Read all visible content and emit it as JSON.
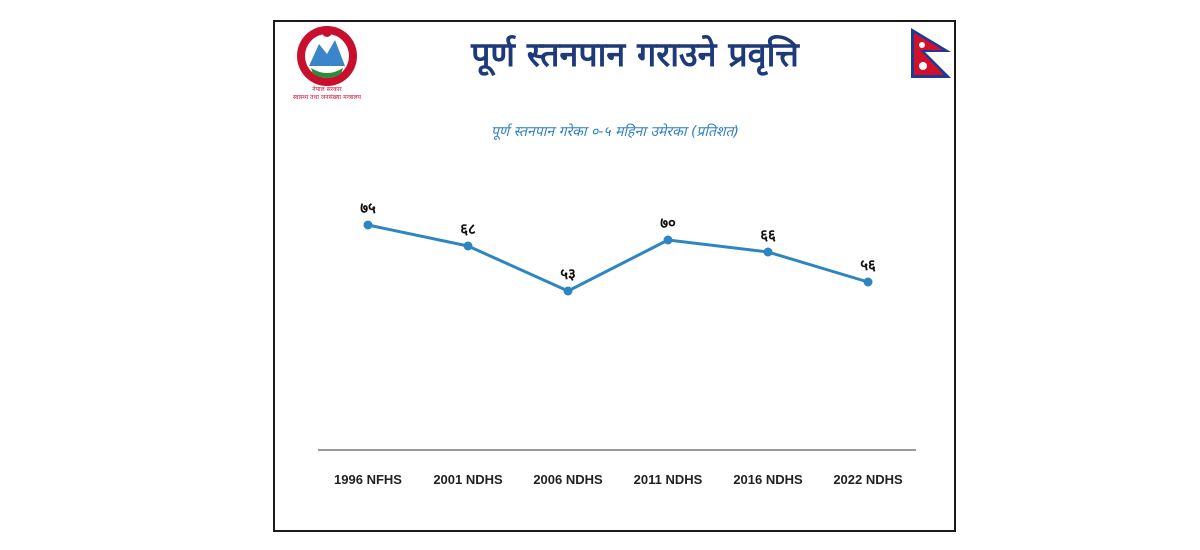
{
  "header": {
    "title": "पूर्ण स्तनपान गराउने प्रवृत्ति",
    "emblem_icon": "nepal-government-emblem",
    "emblem_text": [
      "नेपाल सरकार",
      "स्वास्थ्य तथा जनसंख्या मन्त्रालय"
    ],
    "flag_icon": "nepal-flag-icon"
  },
  "colors": {
    "title": "#1f3a7a",
    "subtitle": "#2f7fc1",
    "line": "#2e86c1",
    "flag_red": "#d0112b",
    "flag_blue": "#1f3a93"
  },
  "chart_data": {
    "type": "line",
    "title": "पूर्ण स्तनपान गरेका ०-५ महिना उमेरका (प्रतिशत)",
    "categories": [
      "1996 NFHS",
      "2001 NDHS",
      "2006 NDHS",
      "2011 NDHS",
      "2016 NDHS",
      "2022 NDHS"
    ],
    "values": [
      75,
      68,
      53,
      70,
      66,
      56
    ],
    "data_labels": [
      "७५",
      "६८",
      "५३",
      "७०",
      "६६",
      "५६"
    ],
    "ylim": [
      0,
      100
    ],
    "grid": false,
    "legend": "none"
  }
}
